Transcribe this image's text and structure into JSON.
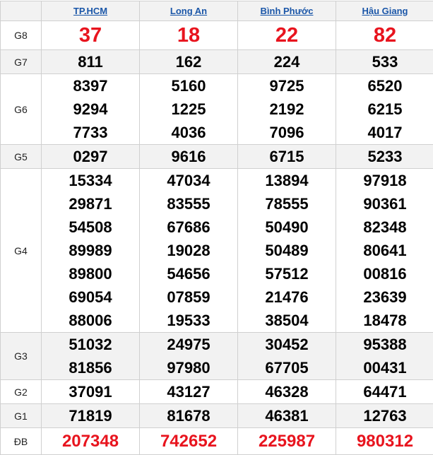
{
  "provinces": [
    "TP.HCM",
    "Long An",
    "Bình Phước",
    "Hậu Giang"
  ],
  "prizes": [
    {
      "label": "G8",
      "key": "g8",
      "results": [
        [
          "37"
        ],
        [
          "18"
        ],
        [
          "22"
        ],
        [
          "82"
        ]
      ]
    },
    {
      "label": "G7",
      "key": "g7",
      "results": [
        [
          "811"
        ],
        [
          "162"
        ],
        [
          "224"
        ],
        [
          "533"
        ]
      ]
    },
    {
      "label": "G6",
      "key": "g6",
      "results": [
        [
          "8397",
          "9294",
          "7733"
        ],
        [
          "5160",
          "1225",
          "4036"
        ],
        [
          "9725",
          "2192",
          "7096"
        ],
        [
          "6520",
          "6215",
          "4017"
        ]
      ]
    },
    {
      "label": "G5",
      "key": "g5",
      "results": [
        [
          "0297"
        ],
        [
          "9616"
        ],
        [
          "6715"
        ],
        [
          "5233"
        ]
      ]
    },
    {
      "label": "G4",
      "key": "g4",
      "results": [
        [
          "15334",
          "29871",
          "54508",
          "89989",
          "89800",
          "69054",
          "88006"
        ],
        [
          "47034",
          "83555",
          "67686",
          "19028",
          "54656",
          "07859",
          "19533"
        ],
        [
          "13894",
          "78555",
          "50490",
          "50489",
          "57512",
          "21476",
          "38504"
        ],
        [
          "97918",
          "90361",
          "82348",
          "80641",
          "00816",
          "23639",
          "18478"
        ]
      ]
    },
    {
      "label": "G3",
      "key": "g3",
      "results": [
        [
          "51032",
          "81856"
        ],
        [
          "24975",
          "97980"
        ],
        [
          "30452",
          "67705"
        ],
        [
          "95388",
          "00431"
        ]
      ]
    },
    {
      "label": "G2",
      "key": "g2",
      "results": [
        [
          "37091"
        ],
        [
          "43127"
        ],
        [
          "46328"
        ],
        [
          "64471"
        ]
      ]
    },
    {
      "label": "G1",
      "key": "g1",
      "results": [
        [
          "71819"
        ],
        [
          "81678"
        ],
        [
          "46381"
        ],
        [
          "12763"
        ]
      ]
    },
    {
      "label": "ĐB",
      "key": "db",
      "results": [
        [
          "207348"
        ],
        [
          "742652"
        ],
        [
          "225987"
        ],
        [
          "980312"
        ]
      ]
    }
  ],
  "colors": {
    "highlight": "#e8141e",
    "link": "#1a56a8",
    "row_alt": "#f2f2f2"
  }
}
